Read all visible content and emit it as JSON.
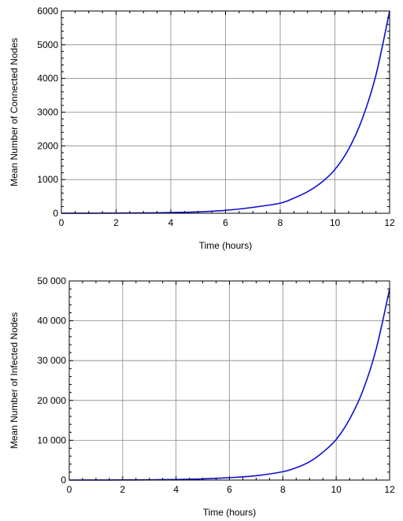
{
  "chart_data": [
    {
      "type": "line",
      "xlabel": "Time (hours)",
      "ylabel": "Mean Number of Connected Nodes",
      "xlim": [
        0,
        12
      ],
      "ylim": [
        0,
        6000
      ],
      "xticks": [
        0,
        2,
        4,
        6,
        8,
        10,
        12
      ],
      "yticks": [
        0,
        1000,
        2000,
        3000,
        4000,
        5000,
        6000
      ],
      "xtick_labels": [
        "0",
        "2",
        "4",
        "6",
        "8",
        "10",
        "12"
      ],
      "ytick_labels": [
        "0",
        "1000",
        "2000",
        "3000",
        "4000",
        "5000",
        "6000"
      ],
      "grid": true,
      "line_color": "#1010d0",
      "series": [
        {
          "x": [
            0,
            1,
            2,
            3,
            4,
            5,
            6,
            7,
            8,
            8.5,
            9,
            9.5,
            10,
            10.5,
            11,
            11.5,
            12
          ],
          "y": [
            1,
            2,
            5,
            10,
            21,
            43,
            87,
            175,
            300,
            450,
            640,
            910,
            1300,
            1900,
            2800,
            4100,
            6000
          ]
        }
      ]
    },
    {
      "type": "line",
      "xlabel": "Time (hours)",
      "ylabel": "Mean Number of Infected Nodes",
      "xlim": [
        0,
        12
      ],
      "ylim": [
        0,
        50000
      ],
      "xticks": [
        0,
        2,
        4,
        6,
        8,
        10,
        12
      ],
      "yticks": [
        0,
        10000,
        20000,
        30000,
        40000,
        50000
      ],
      "xtick_labels": [
        "0",
        "2",
        "4",
        "6",
        "8",
        "10",
        "12"
      ],
      "ytick_labels": [
        "0",
        "10 000",
        "20 000",
        "30 000",
        "40 000",
        "50 000"
      ],
      "grid": true,
      "line_color": "#1010d0",
      "series": [
        {
          "x": [
            0,
            1,
            2,
            3,
            4,
            5,
            6,
            7,
            8,
            8.5,
            9,
            9.5,
            10,
            10.5,
            11,
            11.5,
            12
          ],
          "y": [
            1,
            10,
            30,
            70,
            150,
            300,
            600,
            1100,
            2100,
            3100,
            4600,
            7000,
            10200,
            15300,
            22500,
            33000,
            48000
          ]
        }
      ]
    }
  ]
}
